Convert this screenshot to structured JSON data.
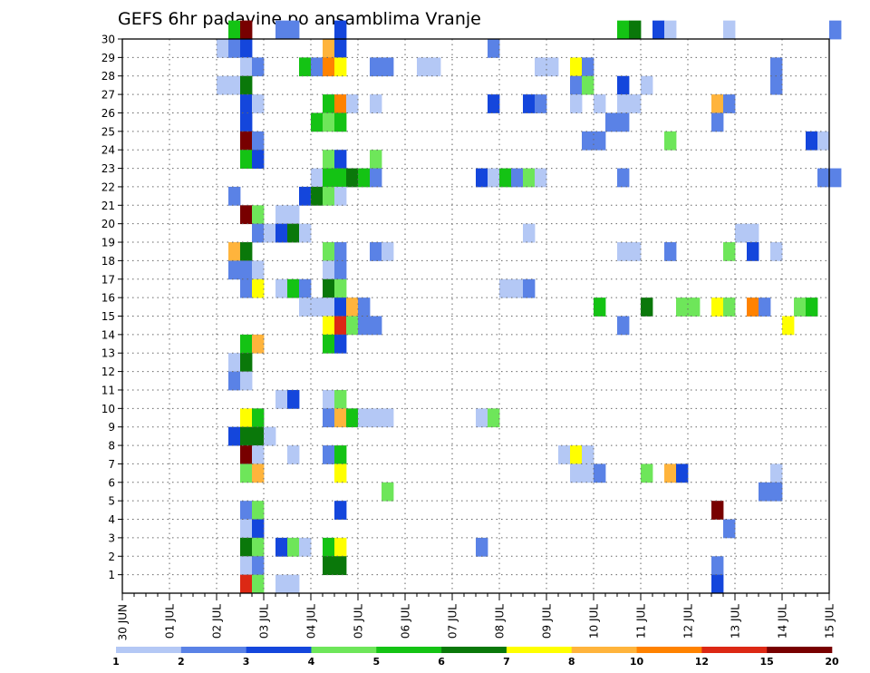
{
  "chart_data": {
    "type": "heatmap",
    "title": "GEFS 6hr padavine po ansamblima Vranje",
    "xlabel": "",
    "ylabel": "",
    "x_tick_labels": [
      "30 JUN",
      "01 JUL",
      "02 JUL",
      "03 JUL",
      "04 JUL",
      "05 JUL",
      "06 JUL",
      "07 JUL",
      "08 JUL",
      "09 JUL",
      "10 JUL",
      "11 JUL",
      "12 JUL",
      "13 JUL",
      "14 JUL",
      "15 JUL"
    ],
    "x_range_days": [
      0,
      15
    ],
    "x_step_hours": 6,
    "y_tick_labels": [
      "1",
      "2",
      "3",
      "4",
      "5",
      "6",
      "7",
      "8",
      "9",
      "10",
      "11",
      "12",
      "13",
      "14",
      "15",
      "16",
      "17",
      "18",
      "19",
      "20",
      "21",
      "22",
      "23",
      "24",
      "25",
      "26",
      "27",
      "28",
      "29",
      "30"
    ],
    "y_range": [
      0,
      30
    ],
    "grid": true,
    "colorbar": {
      "placement": "bottom",
      "tick_labels": [
        "1",
        "2",
        "3",
        "4",
        "5",
        "6",
        "7",
        "8",
        "10",
        "12",
        "15",
        "20"
      ],
      "colors": [
        "#b4c8f5",
        "#5a82e6",
        "#1446dc",
        "#6ee65a",
        "#14c314",
        "#0a780a",
        "#ffff00",
        "#ffb43c",
        "#ff8200",
        "#dc2814",
        "#780000"
      ]
    },
    "cells": [
      [
        30,
        9,
        4
      ],
      [
        30,
        10,
        10
      ],
      [
        30,
        13,
        1
      ],
      [
        30,
        14,
        1
      ],
      [
        30,
        18,
        2
      ],
      [
        30,
        42,
        4
      ],
      [
        30,
        43,
        5
      ],
      [
        30,
        45,
        2
      ],
      [
        30,
        46,
        0
      ],
      [
        30,
        51,
        0
      ],
      [
        30,
        60,
        1
      ],
      [
        29,
        8,
        0
      ],
      [
        29,
        9,
        1
      ],
      [
        29,
        10,
        2
      ],
      [
        29,
        17,
        7
      ],
      [
        29,
        18,
        2
      ],
      [
        29,
        31,
        1
      ],
      [
        28,
        10,
        0
      ],
      [
        28,
        11,
        1
      ],
      [
        28,
        15,
        4
      ],
      [
        28,
        16,
        1
      ],
      [
        28,
        17,
        8
      ],
      [
        28,
        18,
        6
      ],
      [
        28,
        21,
        1
      ],
      [
        28,
        22,
        1
      ],
      [
        28,
        25,
        0
      ],
      [
        28,
        26,
        0
      ],
      [
        28,
        35,
        0
      ],
      [
        28,
        36,
        0
      ],
      [
        28,
        38,
        6
      ],
      [
        28,
        39,
        1
      ],
      [
        28,
        55,
        1
      ],
      [
        27,
        8,
        0
      ],
      [
        27,
        9,
        0
      ],
      [
        27,
        10,
        5
      ],
      [
        27,
        38,
        1
      ],
      [
        27,
        39,
        3
      ],
      [
        27,
        42,
        2
      ],
      [
        27,
        44,
        0
      ],
      [
        27,
        55,
        1
      ],
      [
        26,
        10,
        2
      ],
      [
        26,
        11,
        0
      ],
      [
        26,
        17,
        4
      ],
      [
        26,
        18,
        8
      ],
      [
        26,
        19,
        0
      ],
      [
        26,
        21,
        0
      ],
      [
        26,
        31,
        2
      ],
      [
        26,
        34,
        2
      ],
      [
        26,
        35,
        1
      ],
      [
        26,
        38,
        0
      ],
      [
        26,
        40,
        0
      ],
      [
        26,
        42,
        0
      ],
      [
        26,
        43,
        0
      ],
      [
        26,
        50,
        7
      ],
      [
        26,
        51,
        1
      ],
      [
        25,
        10,
        2
      ],
      [
        25,
        16,
        4
      ],
      [
        25,
        17,
        3
      ],
      [
        25,
        18,
        4
      ],
      [
        25,
        41,
        1
      ],
      [
        25,
        42,
        1
      ],
      [
        25,
        50,
        1
      ],
      [
        24,
        10,
        10
      ],
      [
        24,
        11,
        1
      ],
      [
        24,
        39,
        1
      ],
      [
        24,
        40,
        1
      ],
      [
        24,
        46,
        3
      ],
      [
        24,
        58,
        2
      ],
      [
        24,
        59,
        0
      ],
      [
        23,
        10,
        4
      ],
      [
        23,
        11,
        2
      ],
      [
        23,
        17,
        3
      ],
      [
        23,
        18,
        2
      ],
      [
        23,
        21,
        3
      ],
      [
        22,
        16,
        0
      ],
      [
        22,
        17,
        4
      ],
      [
        22,
        18,
        4
      ],
      [
        22,
        19,
        5
      ],
      [
        22,
        20,
        4
      ],
      [
        22,
        21,
        1
      ],
      [
        22,
        30,
        2
      ],
      [
        22,
        31,
        0
      ],
      [
        22,
        32,
        4
      ],
      [
        22,
        33,
        1
      ],
      [
        22,
        34,
        3
      ],
      [
        22,
        35,
        0
      ],
      [
        22,
        42,
        1
      ],
      [
        22,
        59,
        1
      ],
      [
        22,
        60,
        1
      ],
      [
        21,
        9,
        1
      ],
      [
        21,
        15,
        2
      ],
      [
        21,
        16,
        5
      ],
      [
        21,
        17,
        3
      ],
      [
        21,
        18,
        0
      ],
      [
        20,
        10,
        10
      ],
      [
        20,
        11,
        3
      ],
      [
        20,
        13,
        0
      ],
      [
        20,
        14,
        0
      ],
      [
        19,
        11,
        1
      ],
      [
        19,
        12,
        0
      ],
      [
        19,
        13,
        2
      ],
      [
        19,
        14,
        5
      ],
      [
        19,
        15,
        0
      ],
      [
        19,
        34,
        0
      ],
      [
        19,
        52,
        0
      ],
      [
        19,
        53,
        0
      ],
      [
        18,
        9,
        7
      ],
      [
        18,
        10,
        5
      ],
      [
        18,
        17,
        3
      ],
      [
        18,
        18,
        1
      ],
      [
        18,
        21,
        1
      ],
      [
        18,
        22,
        0
      ],
      [
        18,
        42,
        0
      ],
      [
        18,
        43,
        0
      ],
      [
        18,
        46,
        1
      ],
      [
        18,
        51,
        3
      ],
      [
        18,
        53,
        2
      ],
      [
        18,
        55,
        0
      ],
      [
        17,
        9,
        1
      ],
      [
        17,
        10,
        1
      ],
      [
        17,
        11,
        0
      ],
      [
        17,
        17,
        0
      ],
      [
        17,
        18,
        1
      ],
      [
        16,
        10,
        1
      ],
      [
        16,
        11,
        6
      ],
      [
        16,
        13,
        0
      ],
      [
        16,
        14,
        4
      ],
      [
        16,
        15,
        1
      ],
      [
        16,
        17,
        5
      ],
      [
        16,
        18,
        3
      ],
      [
        16,
        32,
        0
      ],
      [
        16,
        33,
        0
      ],
      [
        16,
        34,
        1
      ],
      [
        15,
        15,
        0
      ],
      [
        15,
        16,
        0
      ],
      [
        15,
        17,
        0
      ],
      [
        15,
        18,
        2
      ],
      [
        15,
        19,
        7
      ],
      [
        15,
        20,
        1
      ],
      [
        15,
        40,
        4
      ],
      [
        15,
        44,
        5
      ],
      [
        15,
        47,
        3
      ],
      [
        15,
        48,
        3
      ],
      [
        15,
        50,
        6
      ],
      [
        15,
        51,
        3
      ],
      [
        15,
        53,
        8
      ],
      [
        15,
        54,
        1
      ],
      [
        15,
        57,
        3
      ],
      [
        15,
        58,
        4
      ],
      [
        14,
        17,
        6
      ],
      [
        14,
        18,
        9
      ],
      [
        14,
        19,
        3
      ],
      [
        14,
        20,
        1
      ],
      [
        14,
        21,
        1
      ],
      [
        14,
        42,
        1
      ],
      [
        14,
        56,
        6
      ],
      [
        13,
        10,
        4
      ],
      [
        13,
        11,
        7
      ],
      [
        13,
        17,
        4
      ],
      [
        13,
        18,
        2
      ],
      [
        12,
        9,
        0
      ],
      [
        12,
        10,
        5
      ],
      [
        11,
        9,
        1
      ],
      [
        11,
        10,
        0
      ],
      [
        10,
        13,
        0
      ],
      [
        10,
        14,
        2
      ],
      [
        10,
        17,
        0
      ],
      [
        10,
        18,
        3
      ],
      [
        9,
        10,
        6
      ],
      [
        9,
        11,
        4
      ],
      [
        9,
        17,
        1
      ],
      [
        9,
        18,
        7
      ],
      [
        9,
        19,
        4
      ],
      [
        9,
        20,
        0
      ],
      [
        9,
        21,
        0
      ],
      [
        9,
        22,
        0
      ],
      [
        9,
        30,
        0
      ],
      [
        9,
        31,
        3
      ],
      [
        8,
        9,
        2
      ],
      [
        8,
        10,
        5
      ],
      [
        8,
        11,
        5
      ],
      [
        8,
        12,
        0
      ],
      [
        7,
        10,
        10
      ],
      [
        7,
        11,
        0
      ],
      [
        7,
        14,
        0
      ],
      [
        7,
        17,
        1
      ],
      [
        7,
        18,
        4
      ],
      [
        7,
        37,
        0
      ],
      [
        7,
        38,
        6
      ],
      [
        7,
        39,
        0
      ],
      [
        6,
        10,
        3
      ],
      [
        6,
        11,
        7
      ],
      [
        6,
        18,
        6
      ],
      [
        6,
        38,
        0
      ],
      [
        6,
        39,
        0
      ],
      [
        6,
        40,
        1
      ],
      [
        6,
        44,
        3
      ],
      [
        6,
        46,
        7
      ],
      [
        6,
        47,
        2
      ],
      [
        6,
        55,
        0
      ],
      [
        5,
        22,
        3
      ],
      [
        5,
        54,
        1
      ],
      [
        5,
        55,
        1
      ],
      [
        4,
        10,
        1
      ],
      [
        4,
        11,
        3
      ],
      [
        4,
        18,
        2
      ],
      [
        4,
        50,
        10
      ],
      [
        3,
        10,
        0
      ],
      [
        3,
        11,
        2
      ],
      [
        3,
        51,
        1
      ],
      [
        2,
        10,
        5
      ],
      [
        2,
        11,
        3
      ],
      [
        2,
        13,
        2
      ],
      [
        2,
        14,
        3
      ],
      [
        2,
        15,
        0
      ],
      [
        2,
        17,
        4
      ],
      [
        2,
        18,
        6
      ],
      [
        2,
        30,
        1
      ],
      [
        1,
        10,
        0
      ],
      [
        1,
        11,
        1
      ],
      [
        1,
        17,
        5
      ],
      [
        1,
        18,
        5
      ],
      [
        1,
        50,
        1
      ],
      [
        0,
        10,
        9
      ],
      [
        0,
        11,
        3
      ],
      [
        0,
        13,
        0
      ],
      [
        0,
        14,
        0
      ],
      [
        0,
        50,
        2
      ]
    ]
  }
}
